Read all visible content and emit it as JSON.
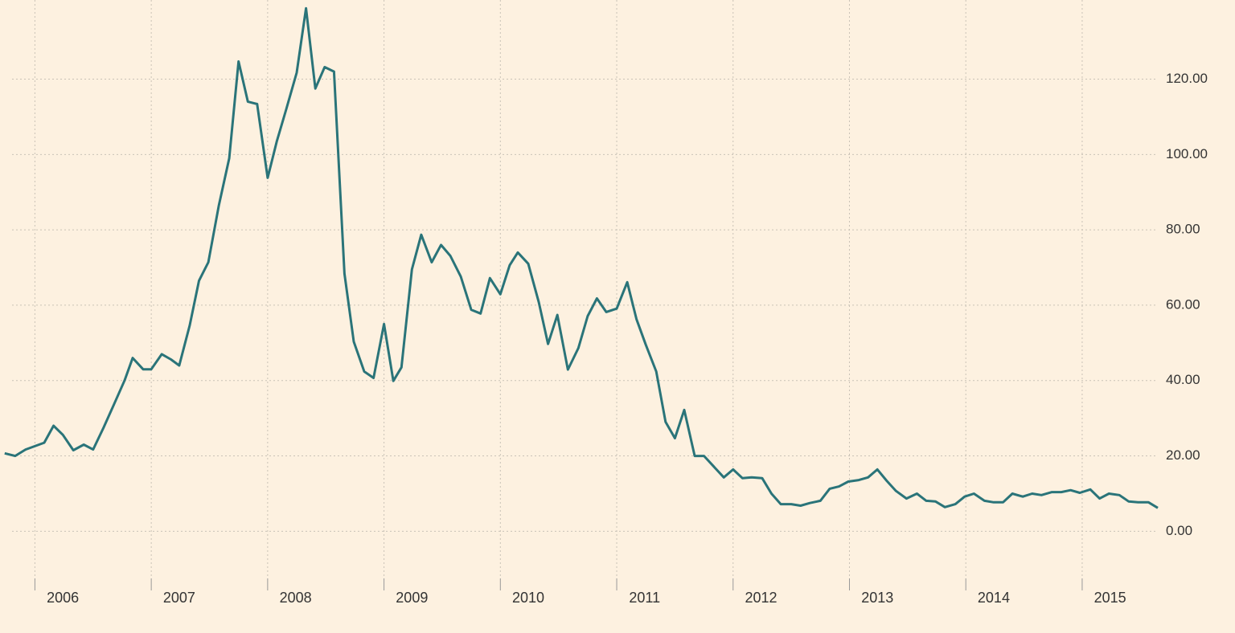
{
  "chart_data": {
    "type": "line",
    "x": [
      2005.74,
      2005.83,
      2005.92,
      2006.08,
      2006.16,
      2006.24,
      2006.33,
      2006.42,
      2006.5,
      2006.59,
      2006.68,
      2006.77,
      2006.84,
      2006.93,
      2007.0,
      2007.09,
      2007.17,
      2007.24,
      2007.33,
      2007.41,
      2007.49,
      2007.58,
      2007.67,
      2007.75,
      2007.83,
      2007.91,
      2008.0,
      2008.08,
      2008.16,
      2008.25,
      2008.33,
      2008.41,
      2008.49,
      2008.57,
      2008.66,
      2008.74,
      2008.83,
      2008.91,
      2009.0,
      2009.08,
      2009.15,
      2009.24,
      2009.32,
      2009.41,
      2009.49,
      2009.57,
      2009.66,
      2009.75,
      2009.83,
      2009.91,
      2010.0,
      2010.08,
      2010.15,
      2010.24,
      2010.33,
      2010.41,
      2010.49,
      2010.58,
      2010.67,
      2010.75,
      2010.83,
      2010.91,
      2011.0,
      2011.09,
      2011.17,
      2011.25,
      2011.34,
      2011.42,
      2011.5,
      2011.58,
      2011.67,
      2011.75,
      2011.83,
      2011.92,
      2012.0,
      2012.08,
      2012.16,
      2012.25,
      2012.33,
      2012.41,
      2012.5,
      2012.58,
      2012.66,
      2012.75,
      2012.83,
      2012.91,
      2012.99,
      2013.08,
      2013.16,
      2013.24,
      2013.32,
      2013.4,
      2013.49,
      2013.58,
      2013.66,
      2013.74,
      2013.82,
      2013.91,
      2013.99,
      2014.07,
      2014.16,
      2014.24,
      2014.32,
      2014.4,
      2014.49,
      2014.57,
      2014.65,
      2014.74,
      2014.82,
      2014.9,
      2014.98,
      2015.07,
      2015.15,
      2015.23,
      2015.32,
      2015.4,
      2015.48,
      2015.57,
      2015.65
    ],
    "series": [
      {
        "color": "#2a7479",
        "values": [
          20.7,
          20,
          21.7,
          23.5,
          28,
          25.6,
          21.5,
          23,
          21.7,
          27.5,
          33.7,
          40,
          46,
          43,
          43,
          47,
          45.6,
          44,
          54.6,
          66.5,
          71.4,
          86.4,
          99,
          124.7,
          114,
          113.4,
          93.8,
          103.6,
          112,
          121.7,
          138.8,
          117.5,
          123.2,
          122,
          68.4,
          50.3,
          42.4,
          40.7,
          55,
          39.9,
          43.5,
          69.5,
          78.7,
          71.4,
          76,
          73.1,
          67.6,
          58.8,
          57.8,
          67.2,
          62.9,
          70.6,
          74,
          71,
          60.8,
          49.7,
          57.4,
          42.9,
          48.6,
          57.1,
          61.8,
          58.2,
          59.1,
          66.1,
          56.3,
          49.5,
          42.4,
          29,
          24.7,
          32.2,
          20,
          20,
          17.3,
          14.3,
          16.4,
          14.1,
          14.3,
          14.1,
          10,
          7.2,
          7.2,
          6.8,
          7.5,
          8.1,
          11.3,
          11.9,
          13.2,
          13.6,
          14.3,
          16.4,
          13.4,
          10.7,
          8.7,
          10,
          8.1,
          7.9,
          6.4,
          7.2,
          9.2,
          10,
          8.1,
          7.7,
          7.7,
          10,
          9.2,
          10,
          9.6,
          10.4,
          10.4,
          10.9,
          10.2,
          11.1,
          8.7,
          10,
          9.6,
          7.9,
          7.7,
          7.7,
          6.2
        ]
      }
    ],
    "xlim": [
      2005.7,
      2015.65
    ],
    "xticks": [
      2006,
      2007,
      2008,
      2009,
      2010,
      2011,
      2012,
      2013,
      2014,
      2015
    ],
    "ylim": [
      -12.5,
      141
    ],
    "yticks": [
      {
        "value": 0,
        "label": "0.00"
      },
      {
        "value": 20,
        "label": "20.00"
      },
      {
        "value": 40,
        "label": "40.00"
      },
      {
        "value": 60,
        "label": "60.00"
      },
      {
        "value": 80,
        "label": "80.00"
      },
      {
        "value": 100,
        "label": "100.00"
      },
      {
        "value": 120,
        "label": "120.00"
      }
    ],
    "grid": true
  }
}
